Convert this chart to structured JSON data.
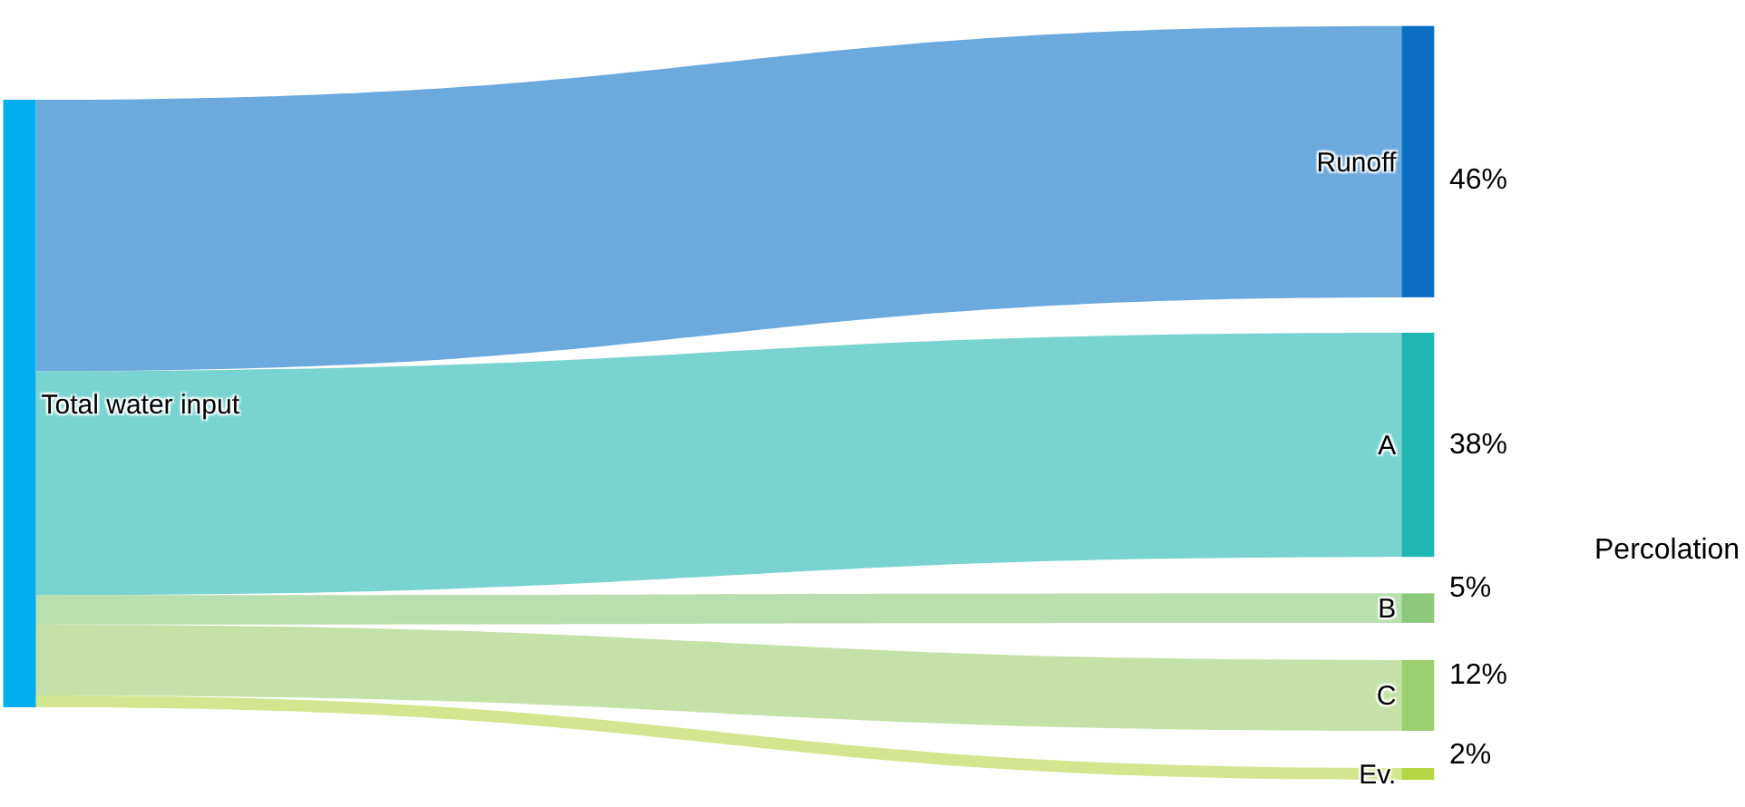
{
  "chart_data": {
    "type": "other",
    "title": "Total water input",
    "categories": [
      "Runoff",
      "A",
      "B",
      "C",
      "Ev."
    ],
    "values": [
      46,
      38,
      5,
      12,
      2
    ],
    "value_labels": [
      "46%",
      "38%",
      "5%",
      "12%",
      "2%"
    ],
    "colors": [
      "#0a6fc4",
      "#1fb5b0",
      "#8cc97a",
      "#9ccf6e",
      "#b5d544"
    ],
    "annotations": [
      "Percolation"
    ]
  }
}
